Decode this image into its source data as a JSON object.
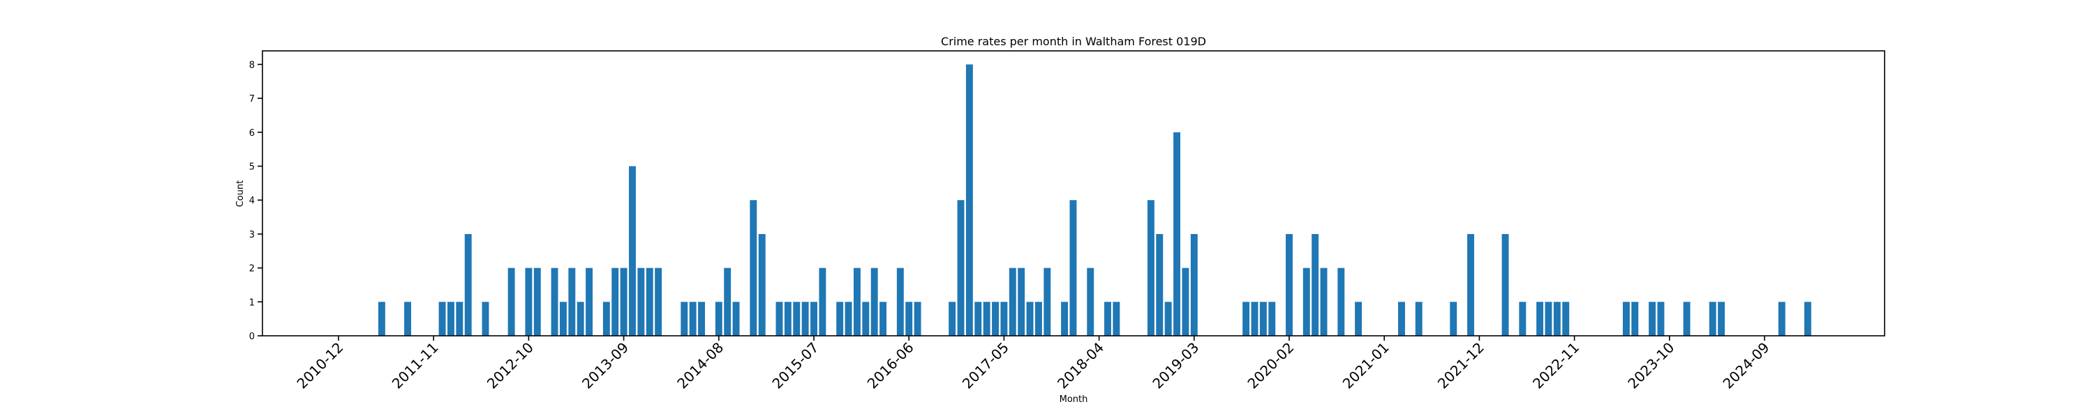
{
  "chart_data": {
    "type": "bar",
    "title": "Crime rates per month in Waltham Forest 019D",
    "xlabel": "Month",
    "ylabel": "Count",
    "color": "#1f77b4",
    "ylim": [
      0,
      8.4
    ],
    "y_ticks": [
      0,
      1,
      2,
      3,
      4,
      5,
      6,
      7,
      8
    ],
    "x_ticks": [
      "2010-12",
      "2011-11",
      "2012-10",
      "2013-09",
      "2014-08",
      "2015-07",
      "2016-06",
      "2017-05",
      "2018-04",
      "2019-03",
      "2020-02",
      "2021-01",
      "2021-12",
      "2022-11",
      "2023-10",
      "2024-09"
    ],
    "grid": false,
    "categories": [
      "2011-05",
      "2011-08",
      "2011-12",
      "2012-01",
      "2012-02",
      "2012-03",
      "2012-05",
      "2012-08",
      "2012-10",
      "2012-11",
      "2013-01",
      "2013-02",
      "2013-03",
      "2013-04",
      "2013-05",
      "2013-07",
      "2013-08",
      "2013-09",
      "2013-10",
      "2013-11",
      "2013-12",
      "2014-01",
      "2014-04",
      "2014-05",
      "2014-06",
      "2014-08",
      "2014-09",
      "2014-10",
      "2014-12",
      "2015-01",
      "2015-03",
      "2015-04",
      "2015-05",
      "2015-06",
      "2015-07",
      "2015-08",
      "2015-10",
      "2015-11",
      "2015-12",
      "2016-01",
      "2016-02",
      "2016-03",
      "2016-05",
      "2016-06",
      "2016-07",
      "2016-11",
      "2016-12",
      "2017-01",
      "2017-02",
      "2017-03",
      "2017-04",
      "2017-05",
      "2017-06",
      "2017-07",
      "2017-08",
      "2017-09",
      "2017-10",
      "2017-12",
      "2018-01",
      "2018-03",
      "2018-05",
      "2018-06",
      "2018-10",
      "2018-11",
      "2018-12",
      "2019-01",
      "2019-02",
      "2019-03",
      "2019-09",
      "2019-10",
      "2019-11",
      "2019-12",
      "2020-02",
      "2020-04",
      "2020-05",
      "2020-06",
      "2020-08",
      "2020-10",
      "2021-03",
      "2021-05",
      "2021-09",
      "2021-11",
      "2022-03",
      "2022-05",
      "2022-07",
      "2022-08",
      "2022-09",
      "2022-10",
      "2023-05",
      "2023-06",
      "2023-08",
      "2023-09",
      "2023-12",
      "2024-03",
      "2024-04",
      "2024-11",
      "2025-02"
    ],
    "values": [
      1,
      1,
      1,
      1,
      1,
      3,
      1,
      2,
      2,
      2,
      2,
      1,
      2,
      1,
      2,
      1,
      2,
      2,
      5,
      2,
      2,
      2,
      1,
      1,
      1,
      1,
      2,
      1,
      4,
      3,
      1,
      1,
      1,
      1,
      1,
      2,
      1,
      1,
      2,
      1,
      2,
      1,
      2,
      1,
      1,
      1,
      4,
      8,
      1,
      1,
      1,
      1,
      2,
      2,
      1,
      1,
      2,
      1,
      4,
      2,
      1,
      1,
      4,
      3,
      1,
      6,
      2,
      3,
      1,
      1,
      1,
      1,
      3,
      2,
      3,
      2,
      2,
      1,
      1,
      1,
      1,
      3,
      3,
      1,
      1,
      1,
      1,
      1,
      1,
      1,
      1,
      1,
      1,
      1,
      1,
      1,
      1
    ]
  }
}
